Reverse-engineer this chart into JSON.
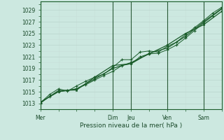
{
  "bg_color": "#cce8e0",
  "grid_major_color": "#b8d4cc",
  "grid_minor_color": "#c8dfd8",
  "line_color": "#1a5c2a",
  "xlabel": "Pression niveau de la mer( hPa )",
  "yticks": [
    1013,
    1015,
    1017,
    1019,
    1021,
    1023,
    1025,
    1027,
    1029
  ],
  "ylim": [
    1012.0,
    1030.5
  ],
  "xlim": [
    0,
    120
  ],
  "xtick_positions": [
    0,
    48,
    60,
    84,
    108,
    120
  ],
  "xtick_labels": [
    "Mer",
    "Dim",
    "Jeu",
    "Ven",
    "Sam",
    ""
  ],
  "vline_positions": [
    0,
    48,
    60,
    84,
    108
  ],
  "series1_x": [
    0,
    6,
    12,
    18,
    24,
    30,
    36,
    42,
    48,
    54,
    60,
    66,
    72,
    78,
    84,
    90,
    96,
    102,
    108,
    114,
    120
  ],
  "series1_y": [
    1013.0,
    1014.2,
    1015.0,
    1015.2,
    1015.5,
    1016.2,
    1017.0,
    1017.8,
    1018.5,
    1019.5,
    1019.8,
    1021.0,
    1021.5,
    1021.6,
    1022.2,
    1023.0,
    1024.2,
    1025.5,
    1026.8,
    1028.0,
    1029.2
  ],
  "series2_x": [
    0,
    6,
    12,
    18,
    24,
    30,
    36,
    42,
    48,
    54,
    60,
    66,
    72,
    78,
    84,
    90,
    96,
    102,
    108,
    114,
    120
  ],
  "series2_y": [
    1013.1,
    1014.5,
    1015.5,
    1015.1,
    1016.0,
    1016.8,
    1017.5,
    1018.0,
    1019.2,
    1020.5,
    1020.5,
    1021.8,
    1022.0,
    1021.8,
    1022.8,
    1023.5,
    1024.8,
    1026.0,
    1027.2,
    1028.5,
    1029.5
  ],
  "series3_x": [
    0,
    12,
    24,
    36,
    48,
    60,
    72,
    84,
    96,
    108,
    120
  ],
  "series3_y": [
    1013.1,
    1015.2,
    1015.3,
    1017.5,
    1019.5,
    1019.8,
    1021.6,
    1022.5,
    1024.5,
    1027.0,
    1029.3
  ],
  "series4_x": [
    0,
    12,
    24,
    36,
    48,
    60,
    72,
    84,
    96,
    108,
    120
  ],
  "series4_y": [
    1013.2,
    1015.0,
    1015.5,
    1017.2,
    1019.0,
    1020.0,
    1021.5,
    1023.0,
    1025.0,
    1026.5,
    1028.8
  ]
}
